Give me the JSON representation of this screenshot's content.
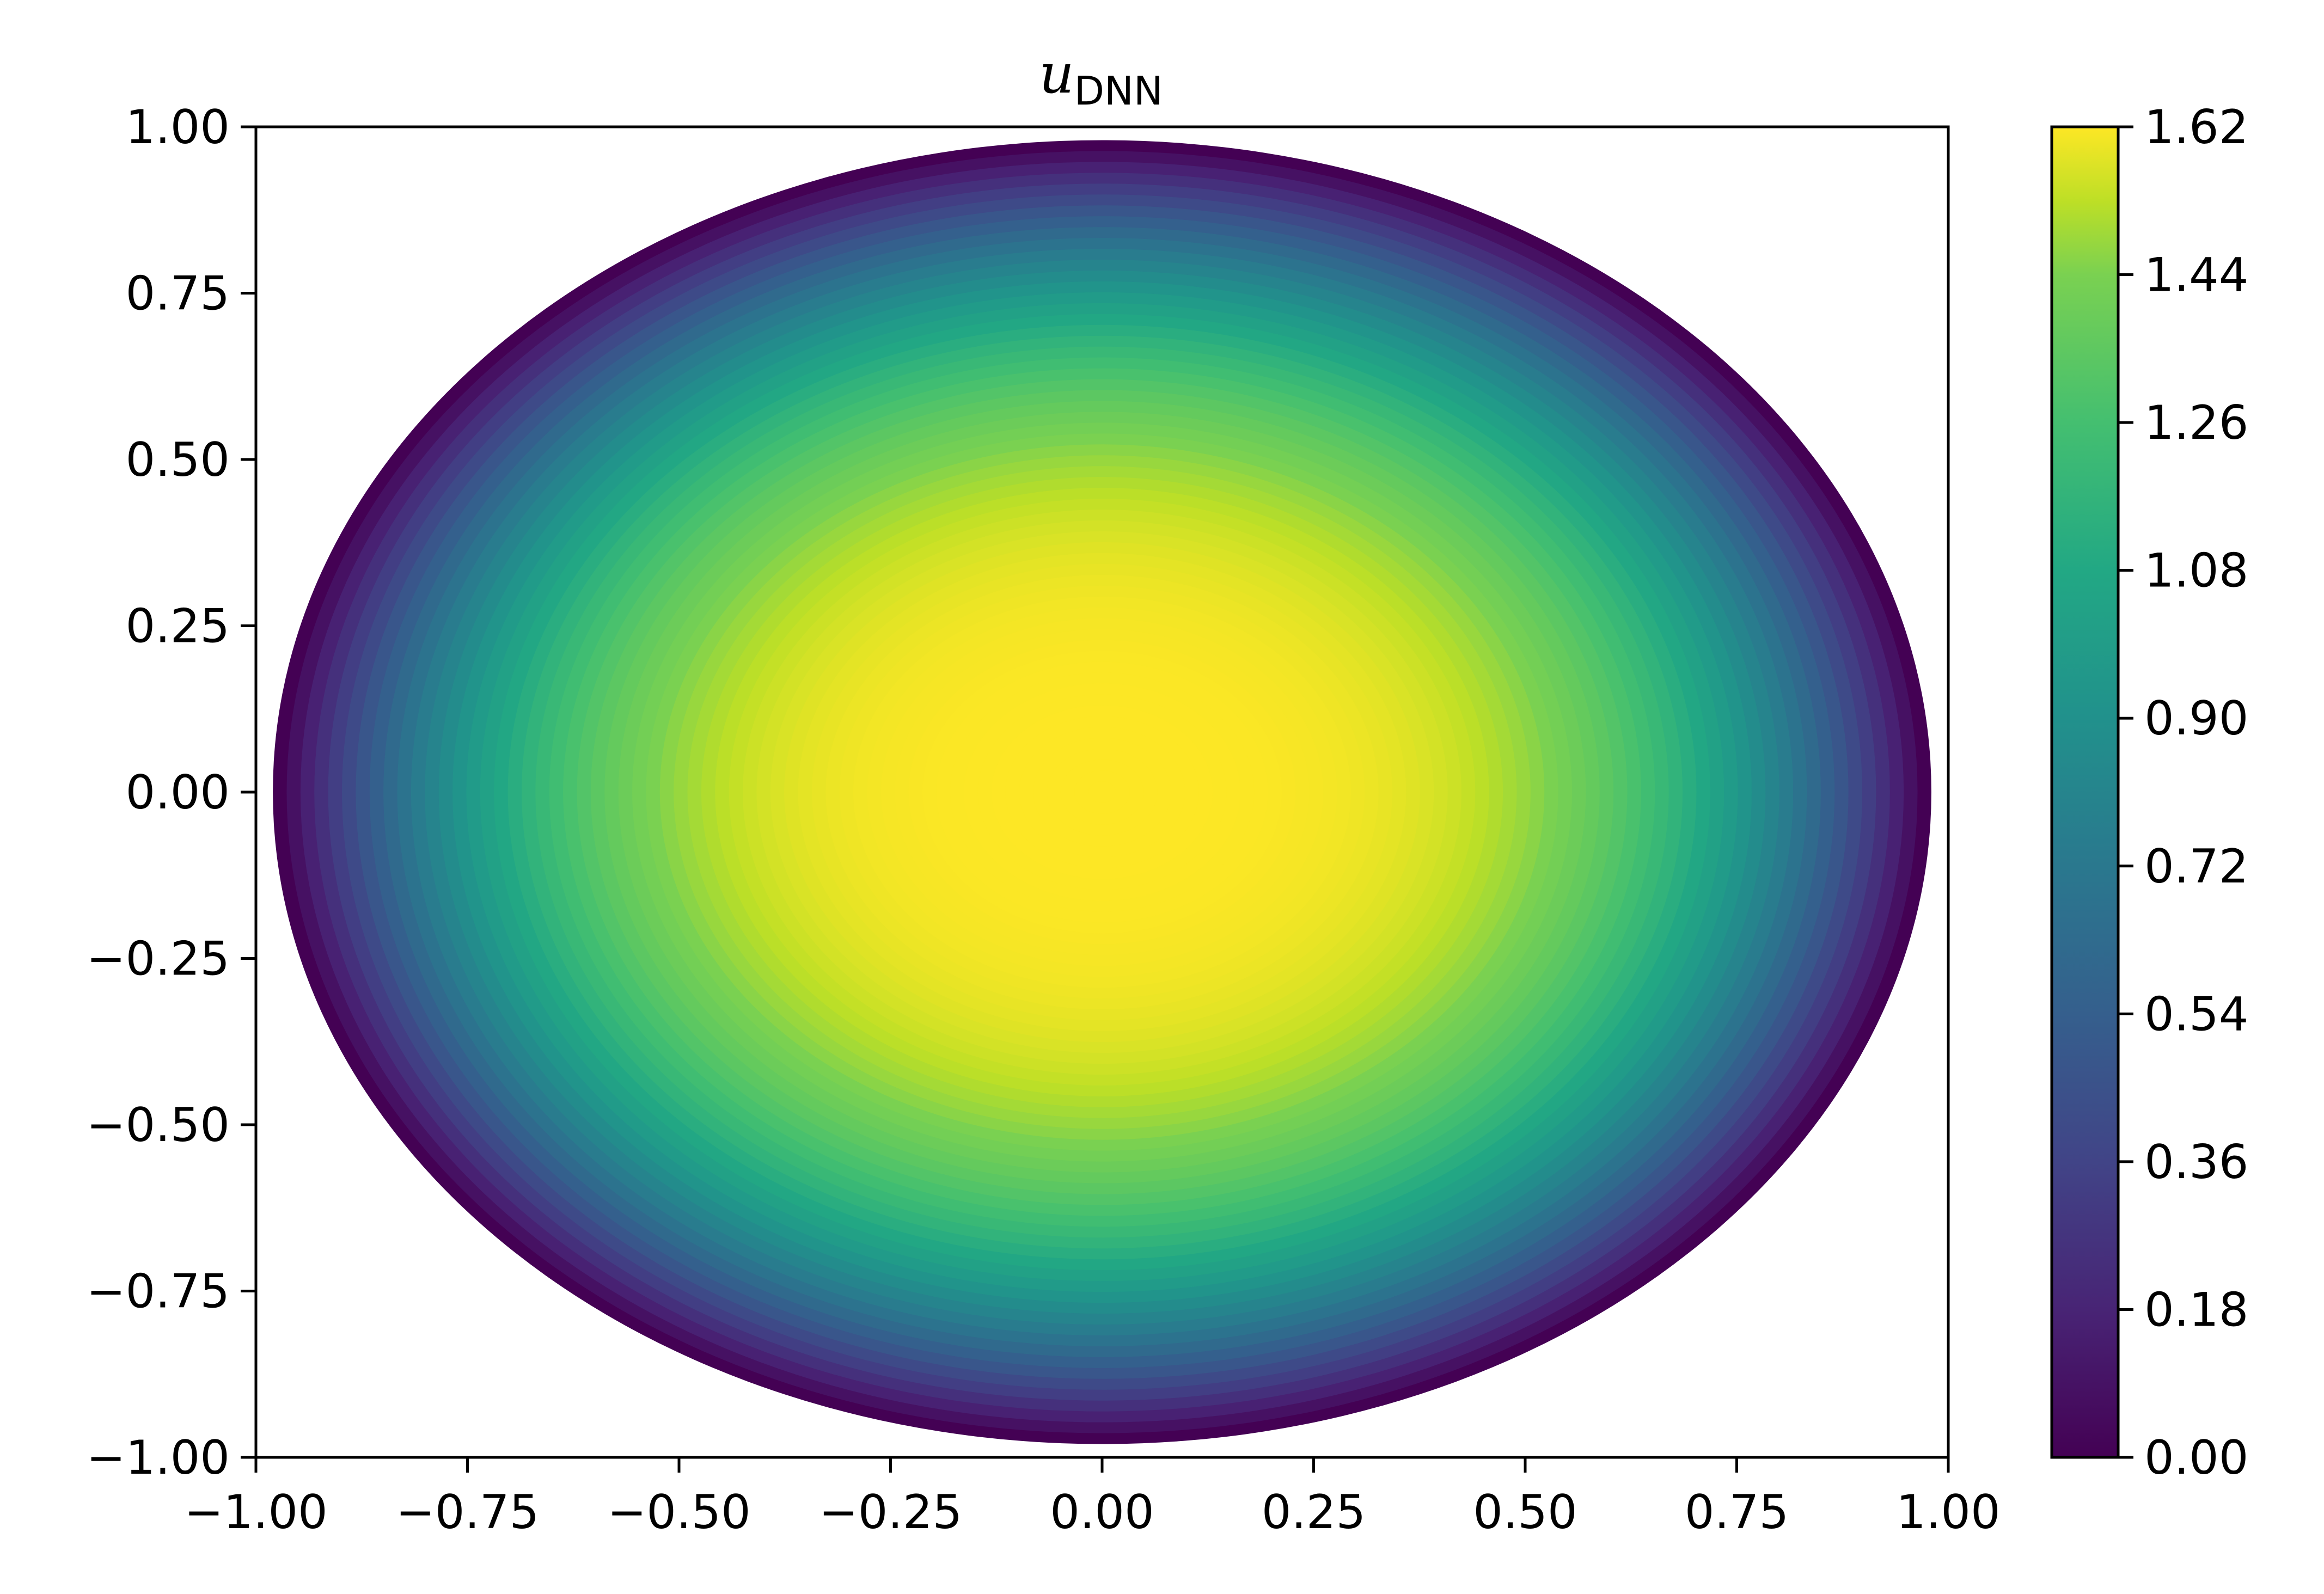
{
  "chart_data": {
    "type": "heatmap",
    "title": "u",
    "title_subscript": "DNN",
    "xlabel": "",
    "ylabel": "",
    "xlim": [
      -1.0,
      1.0
    ],
    "ylim": [
      -1.0,
      1.0
    ],
    "x_ticks": [
      "−1.00",
      "−0.75",
      "−0.50",
      "−0.25",
      "0.00",
      "0.25",
      "0.50",
      "0.75",
      "1.00"
    ],
    "y_ticks": [
      "−1.00",
      "−0.75",
      "−0.50",
      "−0.25",
      "0.00",
      "0.25",
      "0.50",
      "0.75",
      "1.00"
    ],
    "colorbar": {
      "colormap": "viridis",
      "min": 0.0,
      "max": 1.62,
      "ticks": [
        "0.00",
        "0.18",
        "0.36",
        "0.54",
        "0.72",
        "0.90",
        "1.08",
        "1.26",
        "1.44",
        "1.62"
      ]
    },
    "field": {
      "domain": "disk",
      "radius": 0.98,
      "peak_value": 1.62,
      "peak_location": [
        0.0,
        0.0
      ],
      "boundary_value": 0.0
    },
    "grid": false
  }
}
